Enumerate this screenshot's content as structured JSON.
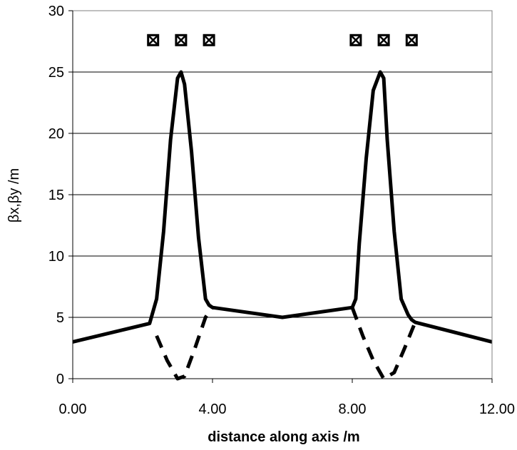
{
  "chart_data": {
    "type": "line",
    "xlabel": "distance along axis /m",
    "ylabel": "βx,βy /m",
    "xlim": [
      0,
      12
    ],
    "ylim": [
      0,
      30
    ],
    "x_ticks": [
      "0.00",
      "4.00",
      "8.00",
      "12.00"
    ],
    "x_tick_values": [
      0,
      4,
      8,
      12
    ],
    "y_ticks": [
      "0",
      "5",
      "10",
      "15",
      "20",
      "25",
      "30"
    ],
    "y_tick_values": [
      0,
      5,
      10,
      15,
      20,
      25,
      30
    ],
    "grid": "horizontal",
    "legend": "none",
    "series": [
      {
        "style": "solid",
        "color": "#000000",
        "x": [
          0,
          2.2,
          2.4,
          2.6,
          2.8,
          3.0,
          3.1,
          3.2,
          3.4,
          3.6,
          3.8,
          3.9,
          4.0,
          6.0,
          8.0,
          8.1,
          8.2,
          8.4,
          8.6,
          8.8,
          8.9,
          9.0,
          9.2,
          9.4,
          9.6,
          9.7,
          9.8,
          12.0
        ],
        "y": [
          3.0,
          4.5,
          6.5,
          12.0,
          19.5,
          24.5,
          25.0,
          24.0,
          18.5,
          11.5,
          6.5,
          6.0,
          5.8,
          5.0,
          5.8,
          6.5,
          11.0,
          18.0,
          23.5,
          25.0,
          24.5,
          19.5,
          12.0,
          6.5,
          5.2,
          4.8,
          4.6,
          3.0
        ]
      },
      {
        "style": "dashed",
        "color": "#000000",
        "segments": [
          {
            "x": [
              2.4,
              2.7,
              3.0,
              3.2,
              3.5,
              3.8,
              4.0
            ],
            "y": [
              3.5,
              1.5,
              0.0,
              0.2,
              2.5,
              5.0,
              5.8
            ]
          },
          {
            "x": [
              8.0,
              8.3,
              8.6,
              8.9,
              9.2,
              9.5,
              9.8
            ],
            "y": [
              5.8,
              3.5,
              1.5,
              0.0,
              0.5,
              2.5,
              4.6
            ]
          }
        ]
      }
    ],
    "markers": {
      "symbol": "boxed-x",
      "y": 27.6,
      "x": [
        2.3,
        3.1,
        3.9,
        8.1,
        8.9,
        9.7
      ]
    }
  }
}
